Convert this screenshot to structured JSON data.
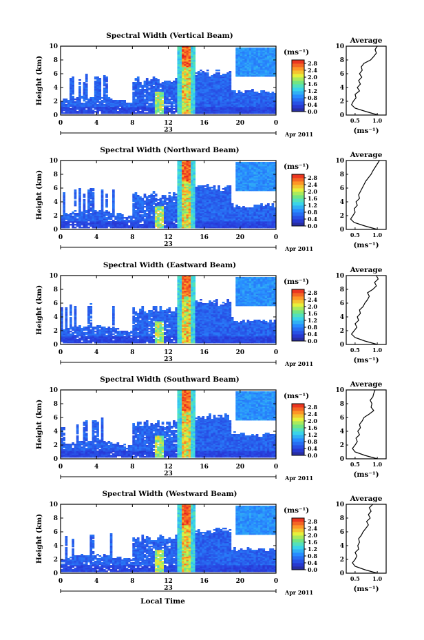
{
  "figure": {
    "panel_titles": [
      "Spectral Width (Vertical Beam)",
      "Spectral Width (Northward Beam)",
      "Spectral Width (Eastward Beam)",
      "Spectral Width (Southward Beam)",
      "Spectral Width (Westward Beam)"
    ],
    "ylabel": "Height (km)",
    "xlabel": "Local Time",
    "date_day": "23",
    "date_month": "Apr 2011",
    "colorbar_unit": "(ms⁻¹)",
    "average_title": "Average",
    "average_xlabel": "(ms⁻¹)"
  },
  "chart_data": [
    {
      "type": "heatmap",
      "title": "Spectral Width (Vertical Beam)",
      "ylabel": "Height (km)",
      "x_ticks": [
        "0",
        "4",
        "8",
        "12",
        "16",
        "20",
        "0"
      ],
      "y_ticks": [
        "0",
        "2",
        "4",
        "6",
        "8",
        "10"
      ],
      "xlim": [
        0,
        24
      ],
      "ylim": [
        0,
        10
      ],
      "colorbar_ticks": [
        "0.0",
        "0.4",
        "0.8",
        "1.2",
        "1.6",
        "2.0",
        "2.4",
        "2.8"
      ],
      "colorbar_range": [
        0,
        3.0
      ],
      "average_profile": {
        "xlim": [
          0.3,
          1.2
        ],
        "x_ticks": [
          "0.5",
          "1.0"
        ],
        "y_ticks": [
          "0",
          "2",
          "4",
          "6",
          "8",
          "10"
        ],
        "height": [
          0,
          0.5,
          1,
          1.5,
          2,
          2.5,
          3,
          3.5,
          4,
          4.5,
          5,
          5.5,
          6,
          6.5,
          7,
          7.5,
          8,
          8.5,
          9,
          9.5,
          10
        ],
        "width": [
          1.02,
          0.75,
          0.5,
          0.42,
          0.46,
          0.52,
          0.5,
          0.6,
          0.55,
          0.62,
          0.58,
          0.65,
          0.6,
          0.66,
          0.64,
          0.7,
          0.85,
          0.92,
          0.98,
          0.95,
          1.0
        ]
      }
    },
    {
      "type": "heatmap",
      "title": "Spectral Width (Northward Beam)",
      "ylabel": "Height (km)",
      "x_ticks": [
        "0",
        "4",
        "8",
        "12",
        "16",
        "20",
        "0"
      ],
      "y_ticks": [
        "0",
        "2",
        "4",
        "6",
        "8",
        "10"
      ],
      "xlim": [
        0,
        24
      ],
      "ylim": [
        0,
        10
      ],
      "colorbar_ticks": [
        "0.0",
        "0.4",
        "0.8",
        "1.2",
        "1.6",
        "2.0",
        "2.4",
        "2.8"
      ],
      "colorbar_range": [
        0,
        3.0
      ],
      "average_profile": {
        "xlim": [
          0.3,
          1.2
        ],
        "x_ticks": [
          "0.5",
          "1.0"
        ],
        "y_ticks": [
          "0",
          "2",
          "4",
          "6",
          "8",
          "10"
        ],
        "height": [
          0,
          0.5,
          1,
          1.5,
          2,
          2.5,
          3,
          3.5,
          4,
          4.5,
          5,
          5.5,
          6,
          6.5,
          7,
          7.5,
          8,
          8.5,
          9,
          9.5,
          10
        ],
        "width": [
          1.0,
          0.72,
          0.48,
          0.4,
          0.45,
          0.5,
          0.48,
          0.55,
          0.52,
          0.6,
          0.58,
          0.62,
          0.66,
          0.7,
          0.74,
          0.8,
          0.86,
          0.9,
          0.95,
          1.0,
          1.05
        ]
      }
    },
    {
      "type": "heatmap",
      "title": "Spectral Width (Eastward Beam)",
      "ylabel": "Height (km)",
      "x_ticks": [
        "0",
        "4",
        "8",
        "12",
        "16",
        "20",
        "0"
      ],
      "y_ticks": [
        "0",
        "2",
        "4",
        "6",
        "8",
        "10"
      ],
      "xlim": [
        0,
        24
      ],
      "ylim": [
        0,
        10
      ],
      "colorbar_ticks": [
        "0.0",
        "0.4",
        "0.8",
        "1.2",
        "1.6",
        "2.0",
        "2.4",
        "2.8"
      ],
      "colorbar_range": [
        0,
        3.0
      ],
      "average_profile": {
        "xlim": [
          0.3,
          1.2
        ],
        "x_ticks": [
          "0.5",
          "1.0"
        ],
        "y_ticks": [
          "0",
          "2",
          "4",
          "6",
          "8",
          "10"
        ],
        "height": [
          0,
          0.5,
          1,
          1.5,
          2,
          2.5,
          3,
          3.5,
          4,
          4.5,
          5,
          5.5,
          6,
          6.5,
          7,
          7.5,
          8,
          8.5,
          9,
          9.5,
          10
        ],
        "width": [
          1.0,
          0.72,
          0.5,
          0.42,
          0.48,
          0.54,
          0.5,
          0.58,
          0.55,
          0.62,
          0.6,
          0.68,
          0.72,
          0.78,
          0.82,
          0.78,
          0.9,
          0.98,
          0.94,
          1.02,
          0.98
        ]
      }
    },
    {
      "type": "heatmap",
      "title": "Spectral Width (Southward Beam)",
      "ylabel": "Height (km)",
      "x_ticks": [
        "0",
        "4",
        "8",
        "12",
        "16",
        "20",
        "0"
      ],
      "y_ticks": [
        "0",
        "2",
        "4",
        "6",
        "8",
        "10"
      ],
      "xlim": [
        0,
        24
      ],
      "ylim": [
        0,
        10
      ],
      "colorbar_ticks": [
        "0.0",
        "0.4",
        "0.8",
        "1.2",
        "1.6",
        "2.0",
        "2.4",
        "2.8"
      ],
      "colorbar_range": [
        0,
        3.0
      ],
      "average_profile": {
        "xlim": [
          0.3,
          1.2
        ],
        "x_ticks": [
          "0.5",
          "1.0"
        ],
        "y_ticks": [
          "0",
          "2",
          "4",
          "6",
          "8",
          "10"
        ],
        "height": [
          0,
          0.5,
          1,
          1.5,
          2,
          2.5,
          3,
          3.5,
          4,
          4.5,
          5,
          5.5,
          6,
          6.5,
          7,
          7.5,
          8,
          8.5,
          9,
          9.5,
          10
        ],
        "width": [
          1.0,
          0.72,
          0.5,
          0.44,
          0.5,
          0.55,
          0.52,
          0.6,
          0.56,
          0.62,
          0.6,
          0.66,
          0.7,
          0.82,
          0.92,
          0.86,
          0.88,
          0.84,
          0.9,
          0.92,
          0.95
        ]
      }
    },
    {
      "type": "heatmap",
      "title": "Spectral Width (Westward Beam)",
      "ylabel": "Height (km)",
      "xlabel": "Local Time",
      "x_ticks": [
        "0",
        "4",
        "8",
        "12",
        "16",
        "20",
        "0"
      ],
      "y_ticks": [
        "0",
        "2",
        "4",
        "6",
        "8",
        "10"
      ],
      "xlim": [
        0,
        24
      ],
      "ylim": [
        0,
        10
      ],
      "colorbar_ticks": [
        "0.0",
        "0.4",
        "0.8",
        "1.2",
        "1.6",
        "2.0",
        "2.4",
        "2.8"
      ],
      "colorbar_range": [
        0,
        3.0
      ],
      "average_profile": {
        "xlim": [
          0.3,
          1.2
        ],
        "x_ticks": [
          "0.5",
          "1.0"
        ],
        "y_ticks": [
          "0",
          "2",
          "4",
          "6",
          "8",
          "10"
        ],
        "height": [
          0,
          0.5,
          1,
          1.5,
          2,
          2.5,
          3,
          3.5,
          4,
          4.5,
          5,
          5.5,
          6,
          6.5,
          7,
          7.5,
          8,
          8.5,
          9,
          9.5,
          10
        ],
        "width": [
          1.0,
          0.72,
          0.5,
          0.44,
          0.5,
          0.54,
          0.5,
          0.58,
          0.56,
          0.6,
          0.58,
          0.64,
          0.68,
          0.74,
          0.8,
          0.76,
          0.84,
          0.8,
          0.86,
          0.82,
          0.9
        ]
      }
    }
  ]
}
